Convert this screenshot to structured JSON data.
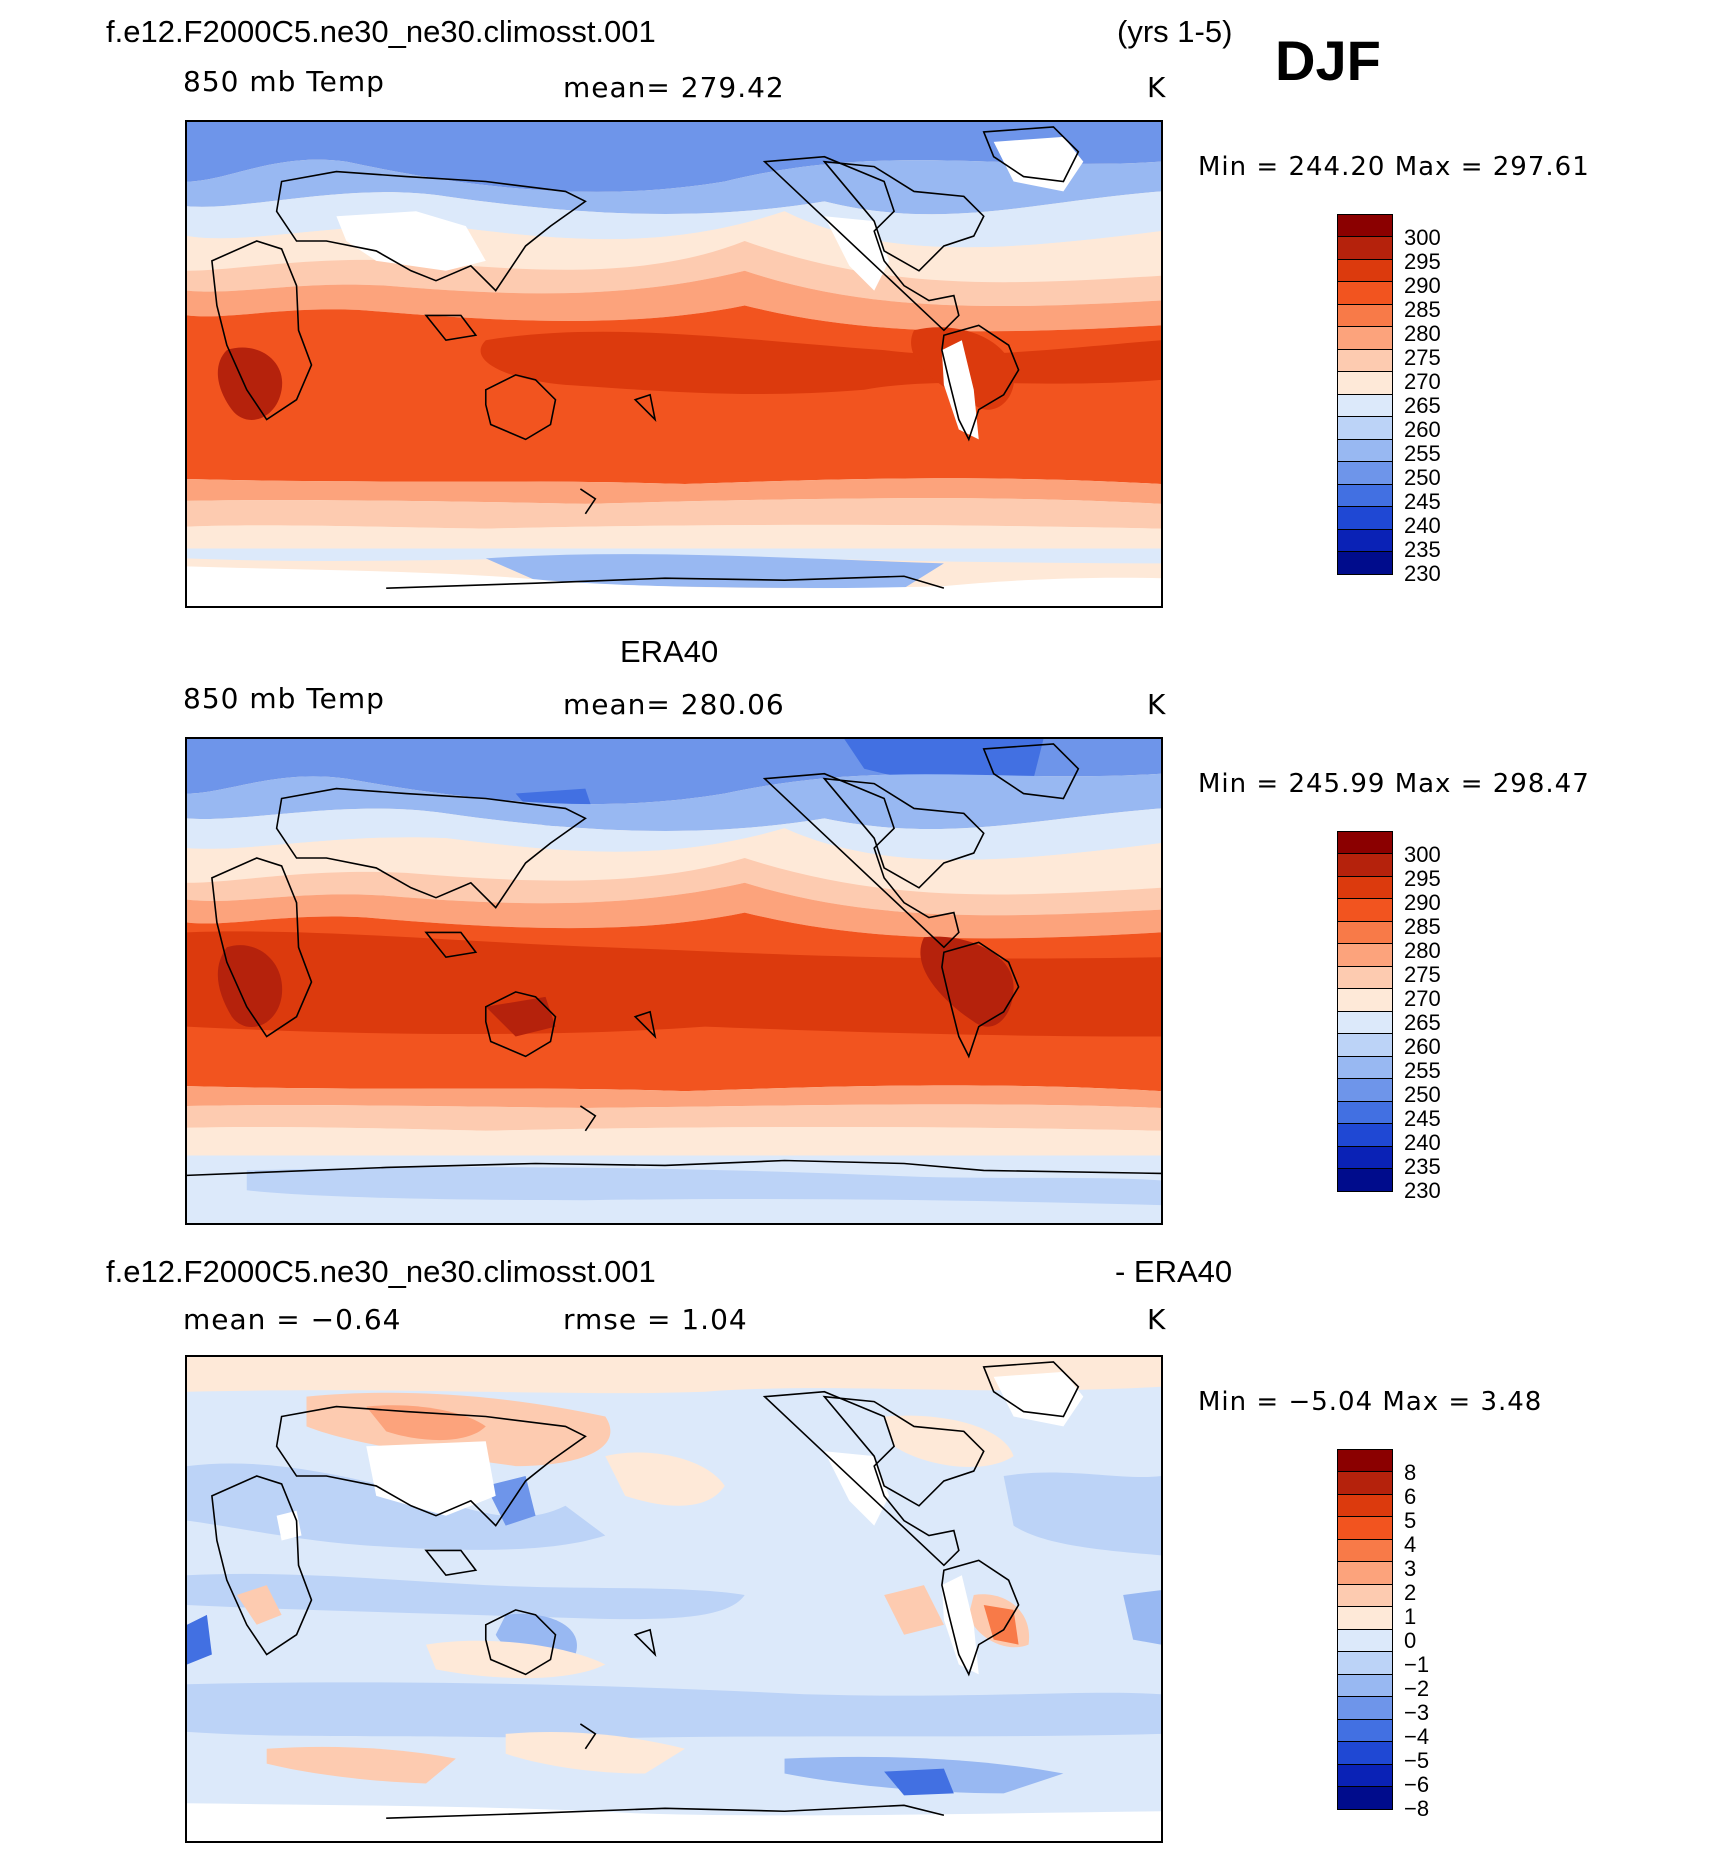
{
  "figure": {
    "season": "DJF",
    "case_name": "f.e12.F2000C5.ne30_ne30.climosst.001",
    "years": "(yrs 1-5)"
  },
  "panels": [
    {
      "id": "model",
      "title_left": "f.e12.F2000C5.ne30_ne30.climosst.001",
      "title_right": "(yrs 1-5)",
      "field": "850 mb Temp",
      "stat": "mean=  279.42",
      "units": "K",
      "minmax": "Min  =  244.20  Max  =  297.61",
      "colorbar_labels": [
        "300",
        "295",
        "290",
        "285",
        "280",
        "275",
        "270",
        "265",
        "260",
        "255",
        "250",
        "245",
        "240",
        "235",
        "230"
      ]
    },
    {
      "id": "obs",
      "title_center": "ERA40",
      "field": "850 mb Temp",
      "stat": "mean=  280.06",
      "units": "K",
      "minmax": "Min  =  245.99  Max  =  298.47",
      "colorbar_labels": [
        "300",
        "295",
        "290",
        "285",
        "280",
        "275",
        "270",
        "265",
        "260",
        "255",
        "250",
        "245",
        "240",
        "235",
        "230"
      ]
    },
    {
      "id": "diff",
      "title_left": "f.e12.F2000C5.ne30_ne30.climosst.001",
      "title_right": "- ERA40",
      "stat_left": "mean  =   −0.64",
      "stat": "rmse  =     1.04",
      "units": "K",
      "minmax": "Min  =    −5.04  Max  =      3.48",
      "colorbar_labels": [
        "8",
        "6",
        "5",
        "4",
        "3",
        "2",
        "1",
        "0",
        "−1",
        "−2",
        "−3",
        "−4",
        "−5",
        "−6",
        "−8"
      ]
    }
  ],
  "colorbar_colors": [
    "#8b0000",
    "#b5220c",
    "#dc3a0d",
    "#f2541f",
    "#f87a48",
    "#fca37c",
    "#fdcbb0",
    "#fee9d8",
    "#dce9fa",
    "#bcd3f7",
    "#98b8f2",
    "#6e95ea",
    "#4270e2",
    "#1f48d4",
    "#0a22b6",
    "#000c8c"
  ],
  "chart_data": {
    "type": "heatmap",
    "maps": [
      {
        "name": "model",
        "field": "850 mb Temp",
        "units": "K",
        "mean": 279.42,
        "min": 244.2,
        "max": 297.61,
        "contour_levels": [
          230,
          235,
          240,
          245,
          250,
          255,
          260,
          265,
          270,
          275,
          280,
          285,
          290,
          295,
          300
        ]
      },
      {
        "name": "ERA40",
        "field": "850 mb Temp",
        "units": "K",
        "mean": 280.06,
        "min": 245.99,
        "max": 298.47,
        "contour_levels": [
          230,
          235,
          240,
          245,
          250,
          255,
          260,
          265,
          270,
          275,
          280,
          285,
          290,
          295,
          300
        ]
      },
      {
        "name": "model - ERA40",
        "units": "K",
        "mean": -0.64,
        "rmse": 1.04,
        "min": -5.04,
        "max": 3.48,
        "contour_levels": [
          -8,
          -6,
          -5,
          -4,
          -3,
          -2,
          -1,
          0,
          1,
          2,
          3,
          4,
          5,
          6,
          8
        ]
      }
    ]
  }
}
